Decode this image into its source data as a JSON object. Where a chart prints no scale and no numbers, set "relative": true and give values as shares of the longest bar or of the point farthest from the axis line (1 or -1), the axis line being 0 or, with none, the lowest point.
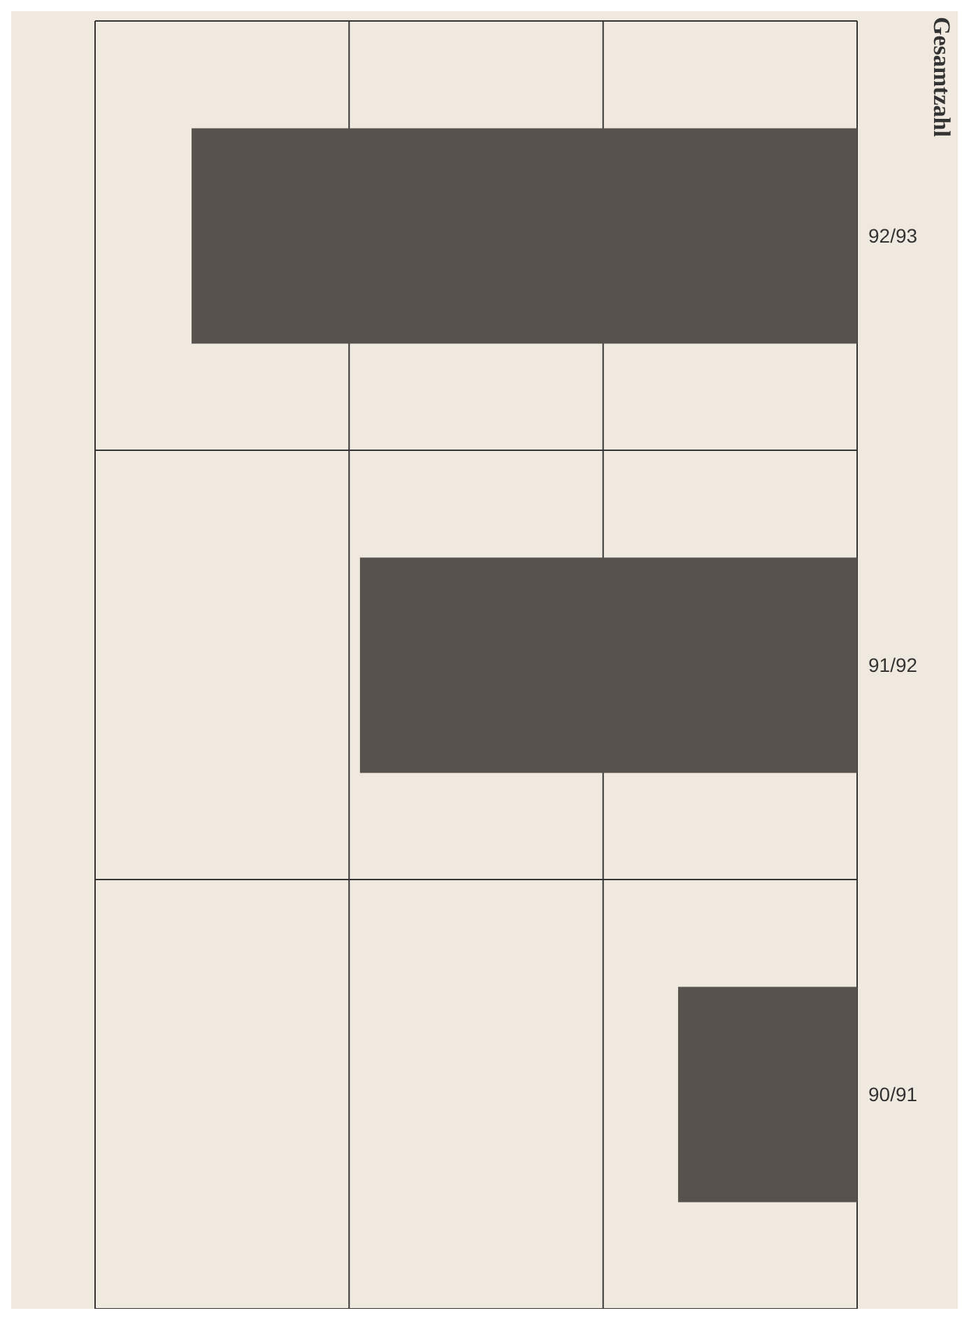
{
  "chart_data": {
    "type": "bar",
    "orientation": "horizontal",
    "relative": true,
    "title": "Gesamtzahl",
    "categories": [
      "92/93",
      "91/92",
      "90/91"
    ],
    "values": [
      1,
      0.747,
      0.269
    ],
    "color": "#57524d",
    "grid": true
  }
}
